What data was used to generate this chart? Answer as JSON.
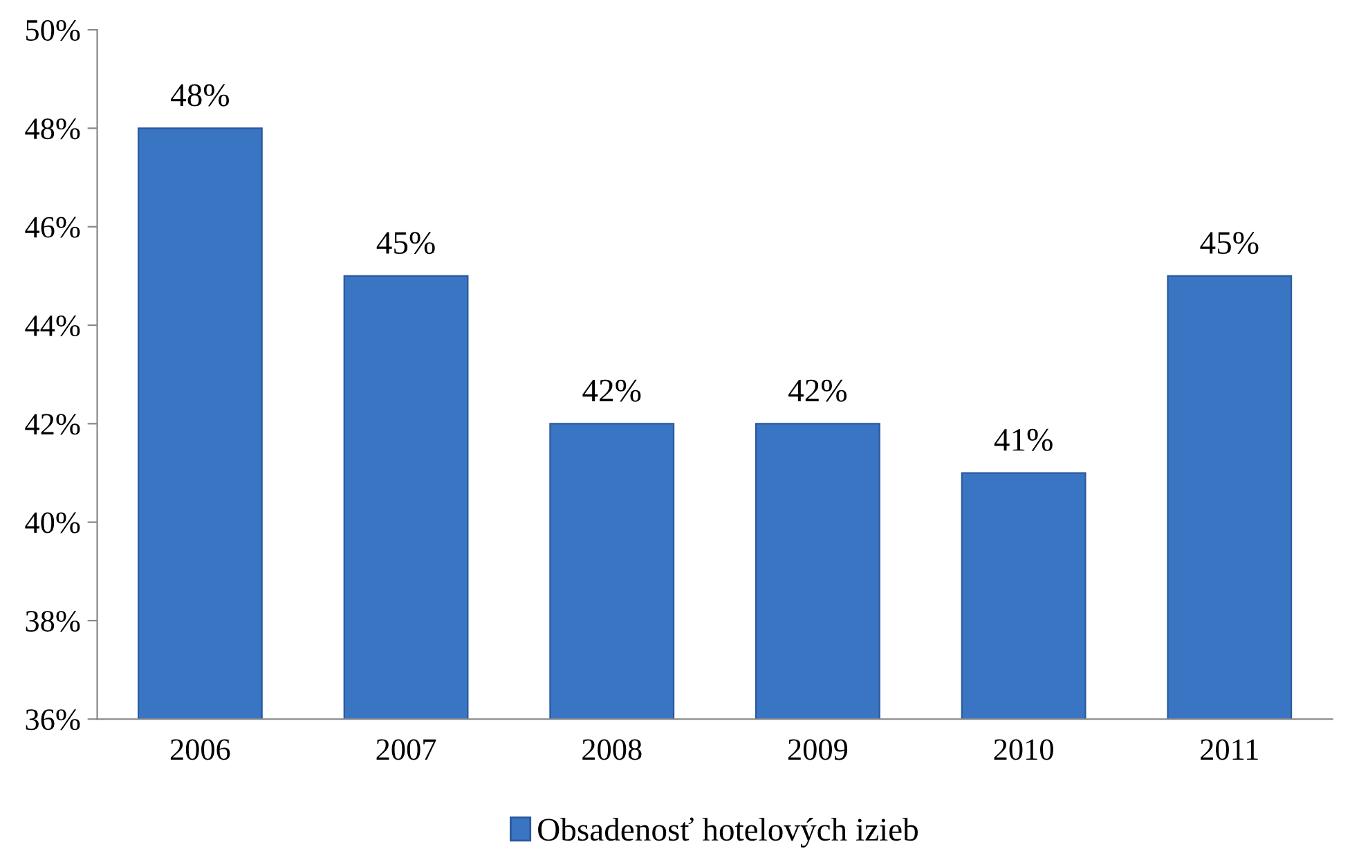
{
  "chart_data": {
    "type": "bar",
    "categories": [
      "2006",
      "2007",
      "2008",
      "2009",
      "2010",
      "2011"
    ],
    "series": [
      {
        "name": "Obsadenosť hotelových izieb",
        "color": "#3a75c4",
        "values": [
          48,
          45,
          42,
          42,
          41,
          45
        ],
        "value_labels": [
          "48%",
          "45%",
          "42%",
          "42%",
          "41%",
          "45%"
        ]
      }
    ],
    "ylim": [
      36,
      50
    ],
    "yticks": [
      {
        "value": 36,
        "label": "36%"
      },
      {
        "value": 38,
        "label": "38%"
      },
      {
        "value": 40,
        "label": "40%"
      },
      {
        "value": 42,
        "label": "42%"
      },
      {
        "value": 44,
        "label": "44%"
      },
      {
        "value": 46,
        "label": "46%"
      },
      {
        "value": 48,
        "label": "48%"
      },
      {
        "value": 50,
        "label": "50%"
      }
    ],
    "grid": false,
    "legend": "bottom"
  }
}
